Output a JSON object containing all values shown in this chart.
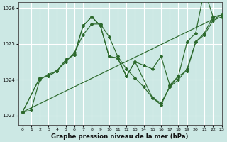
{
  "title": "Graphe pression niveau de la mer (hPa)",
  "bg_color": "#cce8e4",
  "grid_color": "#ffffff",
  "line_color": "#2d6a2d",
  "xlim": [
    -0.5,
    23
  ],
  "ylim": [
    1022.75,
    1026.15
  ],
  "yticks": [
    1023,
    1024,
    1025,
    1026
  ],
  "xticks": [
    0,
    1,
    2,
    3,
    4,
    5,
    6,
    7,
    8,
    9,
    10,
    11,
    12,
    13,
    14,
    15,
    16,
    17,
    18,
    19,
    20,
    21,
    22,
    23
  ],
  "series_wavy": {
    "x": [
      0,
      1,
      2,
      3,
      4,
      5,
      6,
      7,
      8,
      9,
      10,
      11,
      12,
      13,
      14,
      15,
      16,
      17,
      18,
      19,
      20,
      21,
      22,
      23
    ],
    "y": [
      1023.1,
      1023.15,
      1024.0,
      1024.15,
      1024.25,
      1024.5,
      1024.75,
      1025.25,
      1025.55,
      1025.55,
      1025.2,
      1024.65,
      1024.3,
      1024.05,
      1023.8,
      1023.5,
      1023.35,
      1023.8,
      1024.0,
      1024.3,
      1025.05,
      1025.25,
      1025.65,
      1025.75
    ]
  },
  "series_upper": {
    "x": [
      0,
      2,
      3,
      4,
      5,
      6,
      7,
      8,
      9,
      10,
      11,
      12,
      13,
      14,
      15,
      16,
      17,
      18,
      19,
      20,
      21,
      22,
      23
    ],
    "y": [
      1023.1,
      1024.05,
      1024.1,
      1024.25,
      1024.55,
      1024.7,
      1025.5,
      1025.75,
      1025.5,
      1024.65,
      1024.6,
      1024.1,
      1024.5,
      1024.4,
      1024.3,
      1024.65,
      1023.85,
      1024.1,
      1025.05,
      1025.3,
      1026.5,
      1025.75,
      1025.8
    ]
  },
  "series_lower_dip": {
    "x": [
      0,
      2,
      3,
      4,
      5,
      6,
      7,
      8,
      9,
      10,
      11,
      12,
      13,
      15,
      16,
      17,
      18,
      19,
      20,
      21,
      22,
      23
    ],
    "y": [
      1023.1,
      1024.05,
      1024.1,
      1024.25,
      1024.55,
      1024.7,
      1025.5,
      1025.75,
      1025.5,
      1024.65,
      1024.6,
      1024.1,
      1024.5,
      1023.5,
      1023.3,
      1023.8,
      1024.1,
      1024.25,
      1025.05,
      1025.3,
      1025.75,
      1025.8
    ]
  },
  "series_trend": {
    "x": [
      0,
      23
    ],
    "y": [
      1023.1,
      1025.8
    ]
  }
}
